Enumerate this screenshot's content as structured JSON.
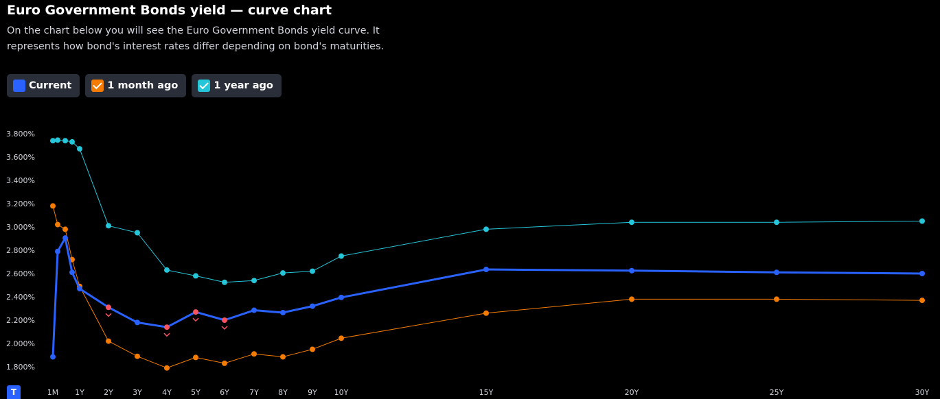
{
  "header": {
    "title": "Euro Government Bonds yield — curve chart",
    "subtitle": "On the chart below you will see the Euro Government Bonds yield curve. It represents how bond's interest rates differ depending on bond's maturities."
  },
  "legend": [
    {
      "label": "Current",
      "color": "#2962ff",
      "checked": false
    },
    {
      "label": "1 month ago",
      "color": "#f57c00",
      "checked": true
    },
    {
      "label": "1 year ago",
      "color": "#26c6da",
      "checked": true
    }
  ],
  "logo": {
    "letter": "T"
  },
  "chart_data": {
    "type": "line",
    "x": [
      "1M",
      "2M",
      "3M",
      "6M",
      "1Y",
      "2Y",
      "3Y",
      "4Y",
      "5Y",
      "6Y",
      "7Y",
      "8Y",
      "9Y",
      "10Y",
      "15Y",
      "20Y",
      "25Y",
      "30Y"
    ],
    "x_years": [
      0.083,
      0.167,
      0.25,
      0.5,
      1,
      2,
      3,
      4,
      5,
      6,
      7,
      8,
      9,
      10,
      15,
      20,
      25,
      30
    ],
    "x_tick_labels": [
      "1M",
      "1Y",
      "2Y",
      "3Y",
      "4Y",
      "5Y",
      "6Y",
      "7Y",
      "8Y",
      "9Y",
      "10Y",
      "15Y",
      "20Y",
      "25Y",
      "30Y"
    ],
    "x_tick_years": [
      0.083,
      1,
      2,
      3,
      4,
      5,
      6,
      7,
      8,
      9,
      10,
      15,
      20,
      25,
      30
    ],
    "y_ticks": [
      "1.800%",
      "2.000%",
      "2.200%",
      "2.400%",
      "2.600%",
      "2.800%",
      "3.000%",
      "3.200%",
      "3.400%",
      "3.600%",
      "3.800%"
    ],
    "ylim": [
      1.8,
      3.8
    ],
    "grid": false,
    "series": [
      {
        "name": "1 year ago",
        "color": "#26c6da",
        "width": 1,
        "values": [
          3.74,
          3.745,
          3.74,
          3.73,
          3.67,
          3.01,
          2.95,
          2.63,
          2.58,
          2.525,
          2.54,
          2.605,
          2.62,
          2.75,
          2.98,
          3.04,
          3.04,
          3.05
        ]
      },
      {
        "name": "1 month ago",
        "color": "#f57c00",
        "width": 1,
        "values": [
          3.18,
          3.02,
          2.98,
          2.72,
          2.49,
          2.02,
          1.89,
          1.79,
          1.88,
          1.83,
          1.91,
          1.885,
          1.95,
          2.045,
          2.26,
          2.38,
          2.38,
          2.37
        ]
      },
      {
        "name": "Current",
        "color": "#2962ff",
        "width": 3,
        "values": [
          1.885,
          2.79,
          2.905,
          2.61,
          2.47,
          2.31,
          2.18,
          2.14,
          2.27,
          2.2,
          2.285,
          2.265,
          2.32,
          2.395,
          2.635,
          2.625,
          2.61,
          2.6
        ],
        "highlighted": [
          "2Y",
          "4Y",
          "5Y",
          "6Y"
        ],
        "highlight_color": "#f7525f"
      }
    ]
  }
}
